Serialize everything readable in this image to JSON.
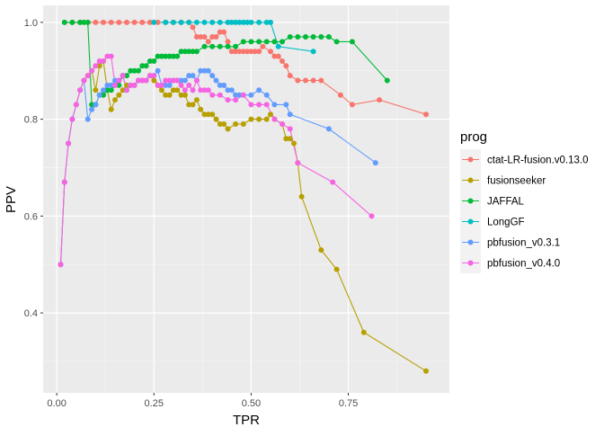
{
  "chart_data": {
    "type": "line",
    "xlabel": "TPR",
    "ylabel": "PPV",
    "xlim": [
      -0.035,
      1.01
    ],
    "ylim": [
      0.235,
      1.035
    ],
    "xticks": [
      0.0,
      0.25,
      0.5,
      0.75
    ],
    "xtick_labels": [
      "0.00",
      "0.25",
      "0.50",
      "0.75"
    ],
    "yticks": [
      0.4,
      0.6,
      0.8,
      1.0
    ],
    "ytick_labels": [
      "0.4",
      "0.6",
      "0.8",
      "1.0"
    ],
    "grid": true,
    "legend_title": "prog",
    "legend_position": "right",
    "series": [
      {
        "name": "ctat-LR-fusion.v0.13.0",
        "color": "#F8766D",
        "x": [
          0.02,
          0.04,
          0.06,
          0.08,
          0.1,
          0.12,
          0.14,
          0.16,
          0.18,
          0.2,
          0.22,
          0.24,
          0.26,
          0.28,
          0.3,
          0.32,
          0.34,
          0.35,
          0.36,
          0.37,
          0.38,
          0.39,
          0.4,
          0.41,
          0.42,
          0.43,
          0.44,
          0.45,
          0.46,
          0.47,
          0.48,
          0.49,
          0.5,
          0.51,
          0.52,
          0.53,
          0.55,
          0.56,
          0.57,
          0.58,
          0.59,
          0.6,
          0.62,
          0.64,
          0.66,
          0.68,
          0.73,
          0.76,
          0.83,
          0.95
        ],
        "y": [
          1.0,
          1.0,
          1.0,
          1.0,
          1.0,
          1.0,
          1.0,
          1.0,
          1.0,
          1.0,
          1.0,
          1.0,
          1.0,
          1.0,
          1.0,
          1.0,
          1.0,
          0.99,
          0.97,
          0.97,
          0.97,
          0.96,
          0.97,
          0.97,
          0.98,
          0.98,
          0.96,
          0.94,
          0.94,
          0.94,
          0.94,
          0.94,
          0.94,
          0.94,
          0.94,
          0.95,
          0.94,
          0.93,
          0.93,
          0.92,
          0.91,
          0.89,
          0.88,
          0.88,
          0.88,
          0.88,
          0.85,
          0.83,
          0.84,
          0.81
        ]
      },
      {
        "name": "fusionseeker",
        "color": "#B79F00",
        "x": [
          0.01,
          0.02,
          0.03,
          0.04,
          0.05,
          0.06,
          0.07,
          0.08,
          0.09,
          0.1,
          0.11,
          0.12,
          0.13,
          0.14,
          0.15,
          0.16,
          0.17,
          0.18,
          0.19,
          0.2,
          0.21,
          0.22,
          0.23,
          0.24,
          0.25,
          0.26,
          0.27,
          0.28,
          0.29,
          0.3,
          0.31,
          0.32,
          0.33,
          0.34,
          0.35,
          0.36,
          0.37,
          0.38,
          0.39,
          0.4,
          0.41,
          0.42,
          0.43,
          0.44,
          0.46,
          0.48,
          0.5,
          0.52,
          0.54,
          0.55,
          0.56,
          0.58,
          0.59,
          0.6,
          0.61,
          0.62,
          0.63,
          0.68,
          0.72,
          0.79,
          0.95
        ],
        "y": [
          0.5,
          0.67,
          0.75,
          0.8,
          0.83,
          0.86,
          0.88,
          0.89,
          0.9,
          0.86,
          0.91,
          0.92,
          0.86,
          0.82,
          0.84,
          0.85,
          0.86,
          0.87,
          0.87,
          0.87,
          0.88,
          0.88,
          0.88,
          0.89,
          0.88,
          0.87,
          0.86,
          0.85,
          0.85,
          0.86,
          0.86,
          0.85,
          0.85,
          0.83,
          0.83,
          0.84,
          0.82,
          0.81,
          0.81,
          0.81,
          0.8,
          0.79,
          0.79,
          0.78,
          0.79,
          0.79,
          0.8,
          0.8,
          0.8,
          0.81,
          0.8,
          0.79,
          0.76,
          0.76,
          0.75,
          0.71,
          0.64,
          0.53,
          0.49,
          0.36,
          0.28
        ]
      },
      {
        "name": "JAFFAL",
        "color": "#00BA38",
        "x": [
          0.02,
          0.04,
          0.06,
          0.07,
          0.08,
          0.09,
          0.1,
          0.11,
          0.12,
          0.13,
          0.14,
          0.15,
          0.16,
          0.17,
          0.18,
          0.19,
          0.2,
          0.21,
          0.22,
          0.23,
          0.24,
          0.25,
          0.26,
          0.27,
          0.28,
          0.29,
          0.3,
          0.31,
          0.32,
          0.33,
          0.34,
          0.35,
          0.36,
          0.38,
          0.4,
          0.42,
          0.44,
          0.46,
          0.48,
          0.5,
          0.52,
          0.54,
          0.56,
          0.58,
          0.6,
          0.62,
          0.64,
          0.66,
          0.68,
          0.7,
          0.72,
          0.76,
          0.85
        ],
        "y": [
          1.0,
          1.0,
          1.0,
          1.0,
          1.0,
          0.83,
          0.83,
          0.85,
          0.85,
          0.86,
          0.86,
          0.87,
          0.87,
          0.89,
          0.89,
          0.9,
          0.9,
          0.9,
          0.91,
          0.91,
          0.92,
          0.92,
          0.93,
          0.93,
          0.93,
          0.93,
          0.93,
          0.93,
          0.94,
          0.94,
          0.94,
          0.94,
          0.94,
          0.95,
          0.95,
          0.95,
          0.95,
          0.95,
          0.96,
          0.96,
          0.96,
          0.96,
          0.96,
          0.96,
          0.97,
          0.97,
          0.97,
          0.97,
          0.97,
          0.97,
          0.96,
          0.96,
          0.88
        ]
      },
      {
        "name": "LongGF",
        "color": "#00BFC4",
        "x": [
          0.25,
          0.28,
          0.3,
          0.32,
          0.34,
          0.36,
          0.38,
          0.4,
          0.42,
          0.44,
          0.45,
          0.46,
          0.47,
          0.48,
          0.49,
          0.5,
          0.52,
          0.54,
          0.55,
          0.57,
          0.66
        ],
        "y": [
          1.0,
          1.0,
          1.0,
          1.0,
          1.0,
          1.0,
          1.0,
          1.0,
          1.0,
          1.0,
          1.0,
          1.0,
          1.0,
          1.0,
          1.0,
          1.0,
          1.0,
          1.0,
          1.0,
          0.95,
          0.94
        ]
      },
      {
        "name": "pbfusion_v0.3.1",
        "color": "#619CFF",
        "x": [
          0.01,
          0.02,
          0.03,
          0.04,
          0.05,
          0.06,
          0.07,
          0.08,
          0.09,
          0.1,
          0.11,
          0.12,
          0.13,
          0.14,
          0.15,
          0.16,
          0.17,
          0.18,
          0.19,
          0.2,
          0.21,
          0.22,
          0.23,
          0.24,
          0.25,
          0.26,
          0.27,
          0.28,
          0.29,
          0.3,
          0.31,
          0.32,
          0.33,
          0.34,
          0.35,
          0.36,
          0.37,
          0.38,
          0.39,
          0.4,
          0.41,
          0.42,
          0.43,
          0.44,
          0.45,
          0.46,
          0.47,
          0.48,
          0.5,
          0.52,
          0.54,
          0.56,
          0.59,
          0.6,
          0.7,
          0.82
        ],
        "y": [
          0.5,
          0.67,
          0.75,
          0.8,
          0.83,
          0.86,
          0.88,
          0.8,
          0.82,
          0.83,
          0.85,
          0.86,
          0.87,
          0.87,
          0.88,
          0.88,
          0.89,
          0.86,
          0.87,
          0.87,
          0.88,
          0.88,
          0.88,
          0.89,
          0.89,
          0.9,
          0.87,
          0.87,
          0.87,
          0.88,
          0.88,
          0.88,
          0.88,
          0.89,
          0.89,
          0.88,
          0.9,
          0.9,
          0.9,
          0.89,
          0.88,
          0.87,
          0.87,
          0.86,
          0.86,
          0.85,
          0.85,
          0.85,
          0.85,
          0.86,
          0.85,
          0.83,
          0.83,
          0.81,
          0.78,
          0.71
        ]
      },
      {
        "name": "pbfusion_v0.4.0",
        "color": "#F564E3",
        "x": [
          0.01,
          0.02,
          0.03,
          0.04,
          0.05,
          0.06,
          0.07,
          0.08,
          0.09,
          0.1,
          0.11,
          0.12,
          0.13,
          0.14,
          0.15,
          0.16,
          0.17,
          0.18,
          0.19,
          0.2,
          0.21,
          0.22,
          0.23,
          0.24,
          0.25,
          0.26,
          0.27,
          0.28,
          0.29,
          0.3,
          0.31,
          0.32,
          0.33,
          0.34,
          0.35,
          0.36,
          0.37,
          0.38,
          0.39,
          0.4,
          0.42,
          0.44,
          0.46,
          0.48,
          0.5,
          0.52,
          0.54,
          0.56,
          0.58,
          0.6,
          0.62,
          0.71,
          0.81
        ],
        "y": [
          0.5,
          0.67,
          0.75,
          0.8,
          0.83,
          0.86,
          0.88,
          0.89,
          0.9,
          0.91,
          0.92,
          0.92,
          0.93,
          0.93,
          0.87,
          0.88,
          0.89,
          0.86,
          0.87,
          0.87,
          0.88,
          0.88,
          0.88,
          0.89,
          0.89,
          0.87,
          0.87,
          0.88,
          0.88,
          0.88,
          0.88,
          0.87,
          0.86,
          0.87,
          0.86,
          0.88,
          0.86,
          0.86,
          0.86,
          0.85,
          0.85,
          0.84,
          0.84,
          0.85,
          0.83,
          0.83,
          0.83,
          0.8,
          0.79,
          0.78,
          0.71,
          0.67,
          0.6
        ]
      }
    ]
  }
}
